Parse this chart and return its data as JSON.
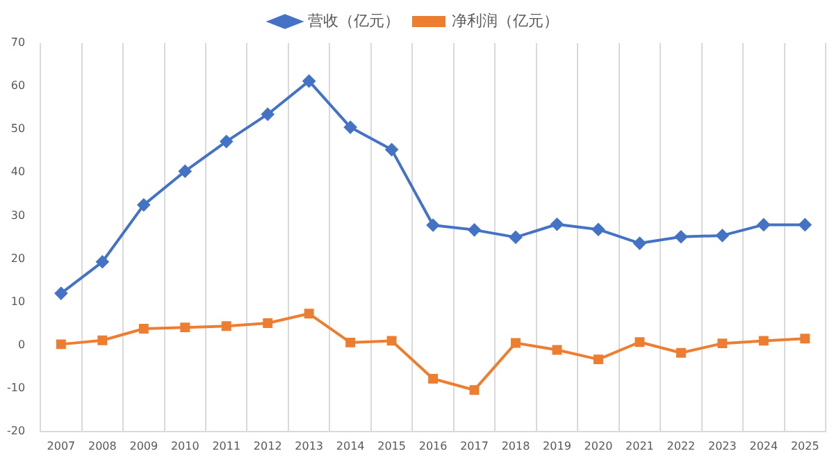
{
  "chart_data": {
    "type": "line",
    "categories": [
      "2007",
      "2008",
      "2009",
      "2010",
      "2011",
      "2012",
      "2013",
      "2014",
      "2015",
      "2016",
      "2017",
      "2018",
      "2019",
      "2020",
      "2021",
      "2022",
      "2023",
      "2024",
      "2025"
    ],
    "series": [
      {
        "name": "营收（亿元）",
        "color": "#4472c4",
        "marker": "diamond",
        "values": [
          12,
          19.3,
          32.5,
          40.3,
          47.2,
          53.5,
          61.2,
          50.5,
          45.3,
          27.8,
          26.7,
          25,
          28,
          26.8,
          23.6,
          25.1,
          25.4,
          27.9,
          27.9
        ]
      },
      {
        "name": "净利润（亿元）",
        "color": "#ed7d31",
        "marker": "square",
        "values": [
          0.2,
          1.1,
          3.8,
          4.1,
          4.4,
          5.1,
          7.3,
          0.6,
          1.0,
          -7.8,
          -10.4,
          0.5,
          -1.1,
          -3.3,
          0.7,
          -1.8,
          0.4,
          1.0,
          1.5
        ]
      }
    ],
    "ylim": [
      -20,
      70
    ],
    "yticks": [
      -20,
      -10,
      0,
      10,
      20,
      30,
      40,
      50,
      60,
      70
    ],
    "grid": "x",
    "legend": "top"
  }
}
